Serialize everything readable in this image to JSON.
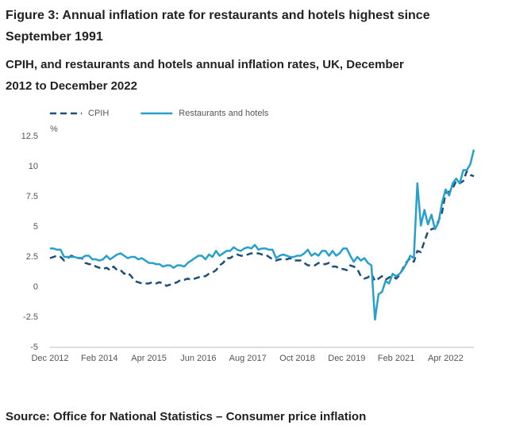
{
  "chart_data": {
    "type": "line",
    "title": "Figure 3: Annual inflation rate for restaurants and hotels highest since September 1991",
    "subtitle": "CPIH, and restaurants and hotels annual inflation rates, UK, December 2012 to December 2022",
    "y_label": "%",
    "source": "Source: Office for National Statistics – Consumer price inflation",
    "categories": [
      "Dec 2012",
      null,
      null,
      null,
      null,
      null,
      null,
      null,
      null,
      null,
      null,
      null,
      null,
      null,
      "Feb 2014",
      null,
      null,
      null,
      null,
      null,
      null,
      null,
      null,
      null,
      null,
      null,
      null,
      null,
      "Apr 2015",
      null,
      null,
      null,
      null,
      null,
      null,
      null,
      null,
      null,
      null,
      null,
      null,
      null,
      "Jun 2016",
      null,
      null,
      null,
      null,
      null,
      null,
      null,
      null,
      null,
      null,
      null,
      null,
      null,
      "Aug 2017",
      null,
      null,
      null,
      null,
      null,
      null,
      null,
      null,
      null,
      null,
      null,
      null,
      null,
      "Oct 2018",
      null,
      null,
      null,
      null,
      null,
      null,
      null,
      null,
      null,
      null,
      null,
      null,
      null,
      "Dec 2019",
      null,
      null,
      null,
      null,
      null,
      null,
      null,
      null,
      null,
      null,
      null,
      null,
      null,
      "Feb 2021",
      null,
      null,
      null,
      null,
      null,
      null,
      null,
      null,
      null,
      null,
      null,
      null,
      null,
      "Apr 2022",
      null,
      null,
      null,
      null,
      null,
      null,
      null,
      null
    ],
    "series": [
      {
        "name": "CPIH",
        "color": "#1f4e79",
        "dashed": true,
        "values": [
          2.4,
          2.5,
          2.6,
          2.5,
          2.2,
          2.4,
          2.6,
          2.5,
          2.4,
          2.4,
          2.0,
          1.9,
          1.9,
          1.7,
          1.6,
          1.5,
          1.6,
          1.4,
          1.7,
          1.4,
          1.4,
          1.1,
          1.2,
          0.9,
          0.5,
          0.4,
          0.3,
          0.3,
          0.3,
          0.4,
          0.3,
          0.4,
          0.3,
          0.1,
          0.2,
          0.3,
          0.4,
          0.6,
          0.6,
          0.7,
          0.6,
          0.7,
          0.8,
          0.9,
          0.9,
          1.1,
          1.2,
          1.4,
          1.8,
          2.0,
          2.4,
          2.4,
          2.6,
          2.7,
          2.6,
          2.6,
          2.7,
          2.8,
          2.8,
          2.8,
          2.7,
          2.7,
          2.5,
          2.3,
          2.2,
          2.3,
          2.3,
          2.3,
          2.4,
          2.2,
          2.2,
          2.2,
          2.0,
          1.8,
          1.8,
          1.8,
          2.0,
          1.9,
          1.9,
          2.0,
          1.7,
          1.7,
          1.5,
          1.5,
          1.4,
          1.8,
          1.7,
          1.5,
          0.9,
          0.7,
          0.8,
          1.1,
          0.5,
          0.7,
          0.9,
          0.6,
          0.8,
          0.9,
          0.7,
          1.0,
          1.6,
          2.1,
          2.4,
          2.1,
          3.0,
          2.9,
          3.8,
          4.6,
          4.8,
          4.9,
          5.5,
          6.2,
          7.8,
          7.9,
          8.2,
          8.8,
          8.6,
          8.8,
          9.6,
          9.3,
          9.2
        ]
      },
      {
        "name": "Restaurants and hotels",
        "color": "#27a0cc",
        "dashed": false,
        "values": [
          3.2,
          3.2,
          3.1,
          3.1,
          2.5,
          2.5,
          2.5,
          2.5,
          2.4,
          2.4,
          2.6,
          2.6,
          2.3,
          2.3,
          2.2,
          2.3,
          2.6,
          2.3,
          2.5,
          2.7,
          2.8,
          2.6,
          2.4,
          2.5,
          2.5,
          2.3,
          2.4,
          2.2,
          2.0,
          2.0,
          1.9,
          1.9,
          1.7,
          1.8,
          1.8,
          1.6,
          1.8,
          1.8,
          1.7,
          2.0,
          2.2,
          2.4,
          2.6,
          2.6,
          2.3,
          2.7,
          2.5,
          3.0,
          2.6,
          2.8,
          3.0,
          3.0,
          3.3,
          3.1,
          3.0,
          3.2,
          3.3,
          3.2,
          3.5,
          3.1,
          3.2,
          3.2,
          3.1,
          3.1,
          2.4,
          2.6,
          2.7,
          2.6,
          2.5,
          2.5,
          2.6,
          2.6,
          2.8,
          3.1,
          2.6,
          2.8,
          2.6,
          3.0,
          3.0,
          2.6,
          3.0,
          2.6,
          2.8,
          3.2,
          3.2,
          2.6,
          2.1,
          2.5,
          2.2,
          2.4,
          2.0,
          1.8,
          -2.7,
          -0.6,
          -0.4,
          0.5,
          0.3,
          1.1,
          0.9,
          1.1,
          1.5,
          2.0,
          2.6,
          2.4,
          8.6,
          5.1,
          6.4,
          5.2,
          6.0,
          4.8,
          5.4,
          7.0,
          8.1,
          7.6,
          8.6,
          9.0,
          8.6,
          9.7,
          9.7,
          10.2,
          11.4
        ]
      }
    ],
    "ylim": [
      -5,
      12.5
    ],
    "yticks": [
      12.5,
      10,
      7.5,
      5,
      2.5,
      0,
      -2.5,
      -5
    ],
    "grid": false,
    "legend": "top-left"
  }
}
